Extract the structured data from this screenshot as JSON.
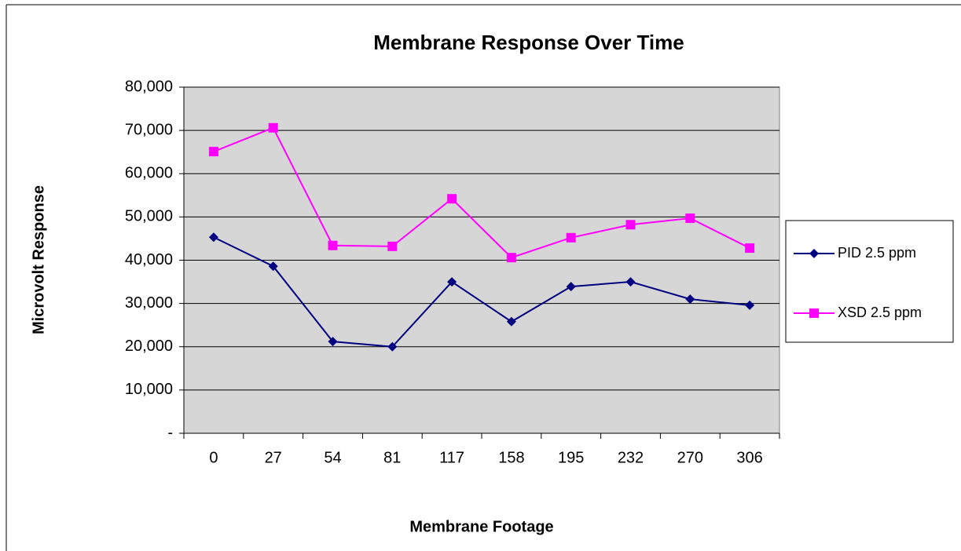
{
  "chart_data": {
    "type": "line",
    "title": "Membrane Response Over Time",
    "x_label": "Membrane Footage",
    "y_label": "Microvolt Response",
    "categories": [
      "0",
      "27",
      "54",
      "81",
      "117",
      "158",
      "195",
      "232",
      "270",
      "306"
    ],
    "series": [
      {
        "name": "PID 2.5 ppm",
        "color": "#000080",
        "marker": "diamond",
        "values": [
          45300,
          38600,
          21200,
          20000,
          35000,
          25800,
          33900,
          35000,
          31000,
          29600
        ]
      },
      {
        "name": "XSD 2.5 ppm",
        "color": "#ff00ff",
        "marker": "square",
        "values": [
          65100,
          70600,
          43400,
          43200,
          54200,
          40600,
          45200,
          48200,
          49700,
          42800
        ]
      }
    ],
    "ylim": [
      0,
      80000
    ],
    "yticks": [
      {
        "value": 0,
        "label": "-"
      },
      {
        "value": 10000,
        "label": "10,000"
      },
      {
        "value": 20000,
        "label": "20,000"
      },
      {
        "value": 30000,
        "label": "30,000"
      },
      {
        "value": 40000,
        "label": "40,000"
      },
      {
        "value": 50000,
        "label": "50,000"
      },
      {
        "value": 60000,
        "label": "60,000"
      },
      {
        "value": 70000,
        "label": "70,000"
      },
      {
        "value": 80000,
        "label": "80,000"
      }
    ],
    "grid": true,
    "legend": "right"
  }
}
